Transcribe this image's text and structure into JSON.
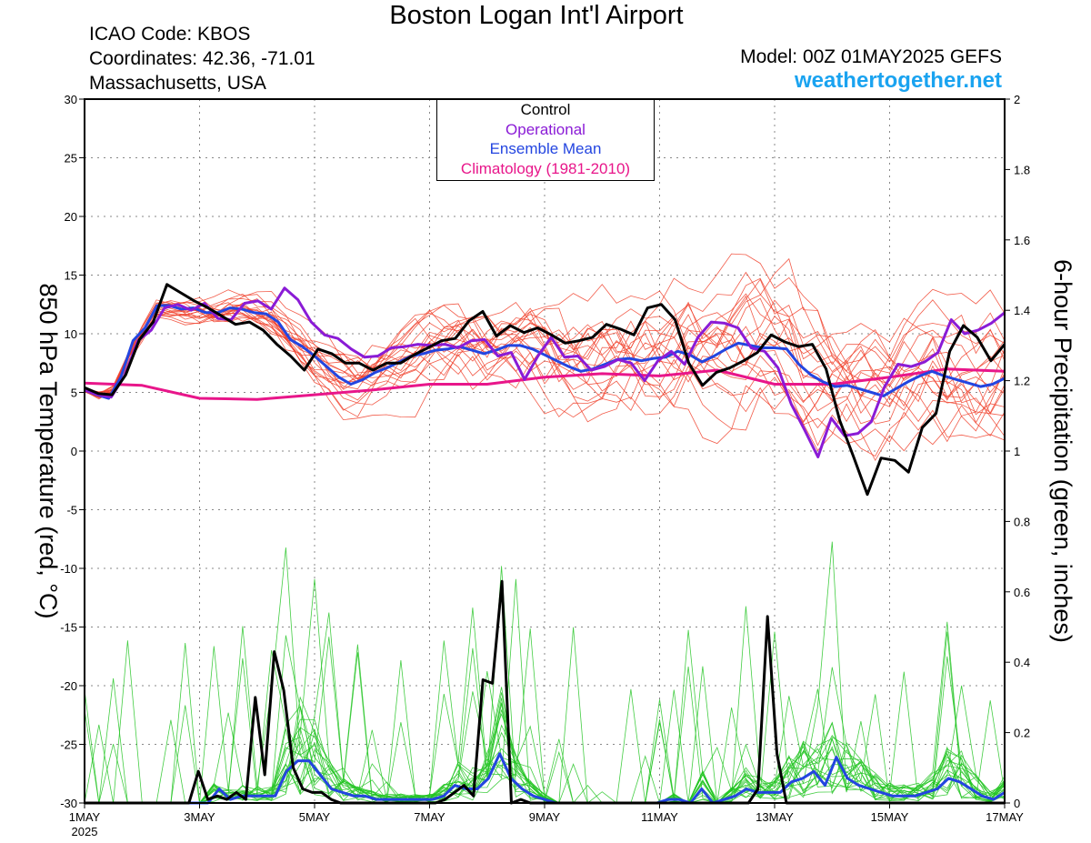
{
  "header": {
    "title": "Boston Logan Int'l Airport",
    "icao": "ICAO Code: KBOS",
    "coordinates": "Coordinates: 42.36, -71.01",
    "region": "Massachusetts, USA",
    "model": "Model: 00Z 01MAY2025 GEFS",
    "site": "weathertogether.net"
  },
  "legend": {
    "entries": [
      {
        "label": "Control",
        "color": "#000000"
      },
      {
        "label": "Operational",
        "color": "#8a1bd6"
      },
      {
        "label": "Ensemble Mean",
        "color": "#2345e0"
      },
      {
        "label": "Climatology (1981-2010)",
        "color": "#e8168a"
      }
    ]
  },
  "chart_data": {
    "type": "line",
    "x_unit": "day of May 2025 (6-hourly)",
    "xlim": [
      1,
      17
    ],
    "x_ticks": [
      {
        "x": 1,
        "label": "1MAY",
        "sublabel": "2025"
      },
      {
        "x": 3,
        "label": "3MAY"
      },
      {
        "x": 5,
        "label": "5MAY"
      },
      {
        "x": 7,
        "label": "7MAY"
      },
      {
        "x": 9,
        "label": "9MAY"
      },
      {
        "x": 11,
        "label": "11MAY"
      },
      {
        "x": 13,
        "label": "13MAY"
      },
      {
        "x": 15,
        "label": "15MAY"
      },
      {
        "x": 17,
        "label": "17MAY"
      }
    ],
    "y_left": {
      "label": "850 hPa Temperature (red, °C)",
      "lim": [
        -30,
        30
      ],
      "ticks": [
        30,
        25,
        20,
        15,
        10,
        5,
        0,
        -5,
        -10,
        -15,
        -20,
        -25,
        -30
      ]
    },
    "y_right": {
      "label": "6-hour Precipitation (green, inches)",
      "lim": [
        0,
        2
      ],
      "ticks": [
        "2",
        "1.8",
        "1.6",
        "1.4",
        "1.2",
        "1",
        "0.8",
        "0.6",
        "0.4",
        "0.2",
        "0"
      ]
    },
    "grid": true,
    "colors": {
      "member_temp": "#f0402a",
      "member_precip": "#22c422",
      "control": "#000000",
      "operational": "#8a1bd6",
      "mean": "#2345e0",
      "climatology": "#e8168a"
    },
    "climatology_temp": [
      [
        1,
        5.8
      ],
      [
        2,
        5.6
      ],
      [
        3,
        4.5
      ],
      [
        4,
        4.4
      ],
      [
        5,
        4.8
      ],
      [
        6,
        5.2
      ],
      [
        7,
        5.7
      ],
      [
        8,
        5.7
      ],
      [
        9,
        6.3
      ],
      [
        10,
        6.6
      ],
      [
        11,
        6.4
      ],
      [
        12,
        6.9
      ],
      [
        13,
        5.7
      ],
      [
        14,
        5.7
      ],
      [
        15,
        6.3
      ],
      [
        16,
        7.0
      ],
      [
        17,
        6.8
      ]
    ],
    "control_temp": [
      5.4,
      4.9,
      4.8,
      6.5,
      9.5,
      11,
      14.2,
      13.5,
      12.8,
      12.2,
      11.5,
      10.8,
      11,
      10.3,
      9.1,
      8.1,
      6.9,
      8.7,
      8.3,
      7.5,
      7.5,
      6.9,
      7.5,
      7.5,
      8.2,
      8.8,
      9.4,
      9.6,
      11.1,
      11.9,
      9.8,
      10.7,
      10.1,
      10.5,
      9.9,
      9.2,
      9.4,
      9.7,
      10.8,
      10.4,
      9.9,
      12.2,
      12.5,
      11.2,
      7.5,
      5.6,
      6.7,
      7.1,
      7.7,
      8.4,
      9.9,
      9.3,
      8.9,
      9.1,
      7.0,
      2.6,
      -0.5,
      -3.7,
      -0.6,
      -0.8,
      -1.8,
      2.0,
      3.2,
      8.5,
      10.7,
      9.7,
      7.7,
      9.1
    ],
    "operational_temp": [
      5.2,
      4.8,
      4.6,
      6.4,
      9.4,
      10.3,
      12.2,
      12.5,
      12.0,
      12.6,
      11.3,
      11.2,
      12.6,
      12.8,
      12.1,
      13.9,
      12.9,
      11.0,
      9.9,
      9.6,
      8.7,
      8.0,
      8.1,
      8.8,
      8.9,
      9.1,
      9.0,
      9.1,
      8.8,
      9.4,
      9.5,
      8.1,
      8.4,
      6.1,
      8.1,
      9.7,
      8.0,
      8.1,
      6.9,
      7.2,
      7.8,
      7.5,
      6.0,
      7.7,
      8.5,
      7.4,
      9.7,
      11.0,
      10.9,
      10.5,
      8.8,
      8.5,
      7.1,
      4.0,
      1.8,
      -0.5,
      2.8,
      1.3,
      1.5,
      2.5,
      5.5,
      7.4,
      7.2,
      7.6,
      8.4,
      11.2,
      10.0,
      10.3,
      10.9,
      11.8
    ],
    "mean_temp": [
      5.2,
      4.8,
      4.5,
      6.3,
      9.4,
      10.5,
      12.4,
      12.4,
      12.1,
      12.2,
      11.8,
      11.8,
      12.2,
      12.1,
      11.8,
      11.7,
      11.0,
      9.5,
      8.9,
      8.1,
      7.2,
      6.3,
      5.7,
      6.1,
      6.7,
      7.1,
      7.6,
      8.1,
      8.3,
      8.6,
      8.7,
      8.9,
      8.6,
      8.3,
      8.6,
      9.0,
      9.0,
      8.7,
      8.2,
      7.7,
      7.2,
      6.8,
      7.0,
      7.4,
      7.8,
      7.9,
      7.7,
      7.9,
      8.0,
      8.5,
      8.2,
      7.6,
      8.1,
      8.7,
      9.2,
      9.0,
      8.8,
      8.8,
      8.7,
      7.4,
      6.5,
      5.9,
      5.5,
      5.6,
      5.3,
      5.0,
      4.7,
      5.3,
      5.9,
      6.4,
      6.8,
      6.4,
      6.1,
      5.8,
      5.5,
      5.7,
      6.2
    ],
    "control_precip": [
      0,
      0,
      0,
      0,
      0,
      0,
      0,
      0,
      0,
      0,
      0,
      0,
      0.09,
      0.01,
      0.02,
      0.01,
      0.03,
      0.01,
      0.3,
      0.08,
      0.43,
      0.32,
      0.1,
      0.04,
      0.03,
      0.03,
      0.01,
      0,
      0,
      0,
      0,
      0,
      0,
      0,
      0,
      0,
      0,
      0,
      0.01,
      0.03,
      0.05,
      0.02,
      0.35,
      0.34,
      0.63,
      0,
      0.01,
      0,
      0,
      0,
      0,
      0,
      0,
      0,
      0,
      0,
      0,
      0,
      0,
      0,
      0,
      0,
      0,
      0,
      0,
      0,
      0,
      0,
      0,
      0,
      0,
      0.04,
      0.53,
      0.14,
      0,
      0,
      0,
      0,
      0,
      0,
      0,
      0,
      0,
      0,
      0,
      0,
      0,
      0,
      0,
      0,
      0,
      0,
      0,
      0,
      0,
      0,
      0,
      0
    ],
    "mean_precip": [
      0,
      0,
      0,
      0,
      0,
      0,
      0,
      0,
      0,
      0,
      0,
      0,
      0.04,
      0.01,
      0.02,
      0.02,
      0.02,
      0.02,
      0.09,
      0.12,
      0.12,
      0.08,
      0.04,
      0.03,
      0.02,
      0.02,
      0.01,
      0.01,
      0.01,
      0.01,
      0.01,
      0.01,
      0.02,
      0.05,
      0.04,
      0.04,
      0.07,
      0.14,
      0.07,
      0.04,
      0.02,
      0.01,
      0,
      0,
      0,
      0,
      0,
      0,
      0,
      0,
      0,
      0,
      0.01,
      0.01,
      0,
      0.04,
      0,
      0.01,
      0.02,
      0.04,
      0.03,
      0.03,
      0.03,
      0.06,
      0.07,
      0.09,
      0.05,
      0.13,
      0.07,
      0.05,
      0.04,
      0.03,
      0.02,
      0.02,
      0.02,
      0.03,
      0.04,
      0.07,
      0.06,
      0.04,
      0.02,
      0.01,
      0.03
    ]
  }
}
